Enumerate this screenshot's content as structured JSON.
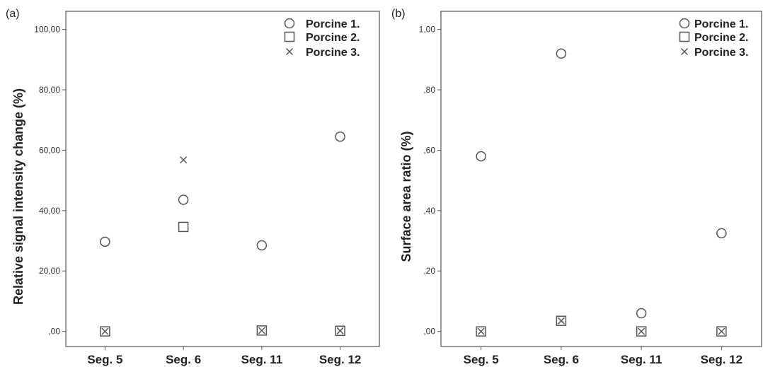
{
  "chart_data": [
    {
      "type": "scatter",
      "panel_label": "(a)",
      "xlabel": "",
      "ylabel": "Relative signal intensity change (%)",
      "categories": [
        "Seg. 5",
        "Seg. 6",
        "Seg. 11",
        "Seg. 12"
      ],
      "ylim": [
        -5,
        106
      ],
      "yticks": [
        0,
        20,
        40,
        60,
        80,
        100
      ],
      "ytick_labels": [
        ",00",
        "20,00",
        "40,00",
        "60,00",
        "80,00",
        "100,00"
      ],
      "legend_position": "top-right",
      "series": [
        {
          "name": "Porcine 1.",
          "marker": "circle",
          "values": [
            29.7,
            43.6,
            28.5,
            64.5
          ]
        },
        {
          "name": "Porcine 2.",
          "marker": "square",
          "values": [
            0,
            34.6,
            0.3,
            0.2
          ]
        },
        {
          "name": "Porcine 3.",
          "marker": "x",
          "values": [
            0,
            56.8,
            0.3,
            0.2
          ]
        }
      ]
    },
    {
      "type": "scatter",
      "panel_label": "(b)",
      "xlabel": "",
      "ylabel": "Surface area ratio (%)",
      "categories": [
        "Seg. 5",
        "Seg. 6",
        "Seg. 11",
        "Seg. 12"
      ],
      "ylim": [
        -0.05,
        1.06
      ],
      "yticks": [
        0,
        0.2,
        0.4,
        0.6,
        0.8,
        1.0
      ],
      "ytick_labels": [
        ",00",
        ",20",
        ",40",
        ",60",
        ",80",
        "1,00"
      ],
      "legend_position": "top-right",
      "series": [
        {
          "name": "Porcine 1.",
          "marker": "circle",
          "values": [
            0.58,
            0.92,
            0.06,
            0.325
          ]
        },
        {
          "name": "Porcine 2.",
          "marker": "square",
          "values": [
            0,
            0.035,
            0,
            0
          ]
        },
        {
          "name": "Porcine 3.",
          "marker": "x",
          "values": [
            0,
            0.035,
            0,
            0
          ]
        }
      ]
    }
  ]
}
